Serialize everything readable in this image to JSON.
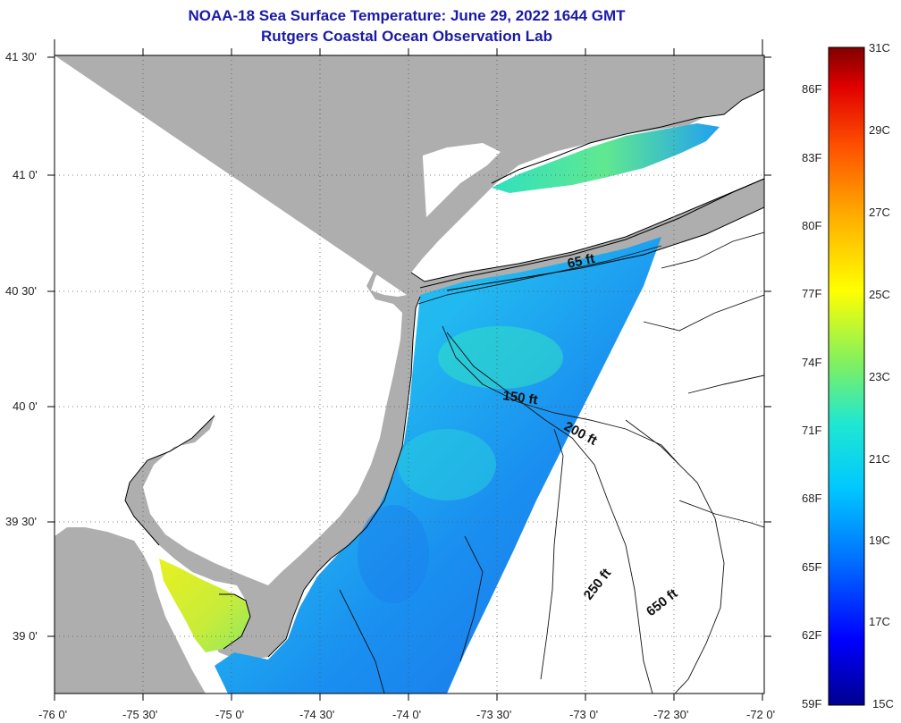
{
  "title": "NOAA-18 Sea Surface Temperature:  June 29, 2022 1644 GMT",
  "subtitle": "Rutgers Coastal Ocean Observation Lab",
  "lat_labels": [
    "41 30'",
    "41 0'",
    "40 30'",
    "40 0'",
    "39 30'",
    "39 0'"
  ],
  "lon_labels": [
    "-76 0'",
    "-75 30'",
    "-75 0'",
    "-74 30'",
    "-74 0'",
    "-73 30'",
    "-73 0'",
    "-72 30'",
    "-72 0'"
  ],
  "contour_labels": [
    "65 ft",
    "150 ft",
    "200 ft",
    "250 ft",
    "650 ft"
  ],
  "colorbar": {
    "celsius_labels": [
      "31C",
      "29C",
      "27C",
      "25C",
      "23C",
      "21C",
      "19C",
      "17C",
      "15C"
    ],
    "fahrenheit_labels": [
      "86F",
      "83F",
      "80F",
      "77F",
      "74F",
      "71F",
      "68F",
      "65F",
      "62F",
      "59F"
    ],
    "range_c": [
      15,
      31
    ],
    "colors": [
      "#00008f",
      "#0000ff",
      "#0070ff",
      "#00c8ff",
      "#20e8d0",
      "#80f060",
      "#ffff00",
      "#ffb000",
      "#ff5000",
      "#e00000",
      "#800000"
    ]
  },
  "colors": {
    "land": "#aeaeae",
    "water_nodata": "#ffffff",
    "title": "#1a1aa6"
  }
}
